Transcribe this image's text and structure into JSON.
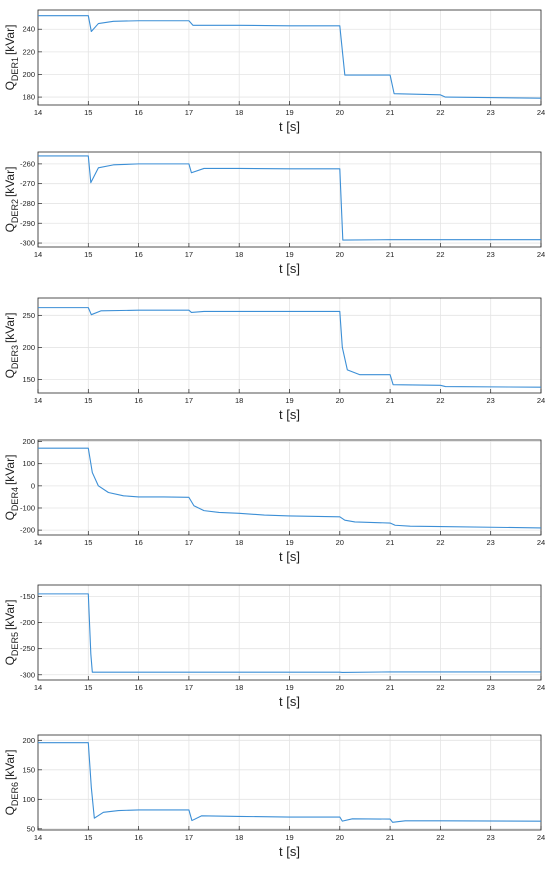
{
  "colors": {
    "line": "#3c8fd6",
    "grid": "#e4e4e4",
    "axis": "#262626"
  },
  "chart_data": [
    {
      "type": "line",
      "ylabel": "Q",
      "ylabel_sub": "DER1",
      "ylabel_unit": "[kVar]",
      "xlabel": "t [s]",
      "xlim": [
        14,
        24
      ],
      "ylim": [
        173,
        257
      ],
      "xticks": [
        14,
        15,
        16,
        17,
        18,
        19,
        20,
        21,
        22,
        23,
        24
      ],
      "yticks": [
        180,
        200,
        220,
        240
      ],
      "grid": true,
      "series": [
        {
          "x": [
            14,
            15,
            15.06,
            15.2,
            15.5,
            16,
            17,
            17.08,
            18,
            19,
            20,
            20.1,
            21,
            21.08,
            22,
            22.1,
            24
          ],
          "y": [
            252,
            252,
            238,
            245,
            247,
            247.5,
            247.5,
            243.5,
            243.5,
            243,
            243,
            199.5,
            199.5,
            183,
            182,
            180,
            179
          ]
        }
      ]
    },
    {
      "type": "line",
      "ylabel": "Q",
      "ylabel_sub": "DER2",
      "ylabel_unit": "[kVar]",
      "xlabel": "t [s]",
      "xlim": [
        14,
        24
      ],
      "ylim": [
        -302,
        -254
      ],
      "xticks": [
        14,
        15,
        16,
        17,
        18,
        19,
        20,
        21,
        22,
        23,
        24
      ],
      "yticks": [
        -300,
        -290,
        -280,
        -270,
        -260
      ],
      "grid": true,
      "series": [
        {
          "x": [
            14,
            15,
            15.05,
            15.2,
            15.5,
            16,
            17,
            17.05,
            17.3,
            18,
            19,
            20,
            20.06,
            21,
            24
          ],
          "y": [
            -256,
            -256,
            -269.5,
            -262,
            -260.5,
            -260,
            -260,
            -264.5,
            -262.3,
            -262.3,
            -262.5,
            -262.5,
            -298.5,
            -298.3,
            -298.3
          ]
        }
      ]
    },
    {
      "type": "line",
      "ylabel": "Q",
      "ylabel_sub": "DER3",
      "ylabel_unit": "[kVar]",
      "xlabel": "t [s]",
      "xlim": [
        14,
        24
      ],
      "ylim": [
        129,
        277
      ],
      "xticks": [
        14,
        15,
        16,
        17,
        18,
        19,
        20,
        21,
        22,
        23,
        24
      ],
      "yticks": [
        150,
        200,
        250
      ],
      "grid": true,
      "series": [
        {
          "x": [
            14,
            15,
            15.06,
            15.25,
            16,
            17,
            17.05,
            17.3,
            18,
            19,
            20,
            20.05,
            20.15,
            20.4,
            21,
            21.06,
            22,
            22.1,
            24
          ],
          "y": [
            262,
            262,
            251,
            257,
            258,
            258,
            254.5,
            256,
            256,
            256,
            256,
            200,
            165,
            157.5,
            157.5,
            142,
            141,
            139,
            138
          ]
        }
      ]
    },
    {
      "type": "line",
      "ylabel": "Q",
      "ylabel_sub": "DER4",
      "ylabel_unit": "[kVar]",
      "xlabel": "t [s]",
      "xlim": [
        14,
        24
      ],
      "ylim": [
        -222,
        207
      ],
      "xticks": [
        14,
        15,
        16,
        17,
        18,
        19,
        20,
        21,
        22,
        23,
        24
      ],
      "yticks": [
        -200,
        -100,
        0,
        100,
        200
      ],
      "grid": true,
      "series": [
        {
          "x": [
            14,
            15,
            15.08,
            15.2,
            15.4,
            15.7,
            16,
            16.5,
            17,
            17.1,
            17.3,
            17.6,
            18,
            18.5,
            19,
            20,
            20.1,
            20.3,
            21,
            21.1,
            21.4,
            22,
            24
          ],
          "y": [
            170,
            170,
            60,
            0,
            -30,
            -45,
            -50,
            -50,
            -52,
            -90,
            -112,
            -120,
            -124,
            -132,
            -136,
            -140,
            -155,
            -163,
            -168,
            -178,
            -182,
            -184,
            -190
          ]
        }
      ]
    },
    {
      "type": "line",
      "ylabel": "Q",
      "ylabel_sub": "DER5",
      "ylabel_unit": "[kVar]",
      "xlabel": "t [s]",
      "xlim": [
        14,
        24
      ],
      "ylim": [
        -310,
        -128
      ],
      "xticks": [
        14,
        15,
        16,
        17,
        18,
        19,
        20,
        21,
        22,
        23,
        24
      ],
      "yticks": [
        -300,
        -250,
        -200,
        -150
      ],
      "grid": true,
      "series": [
        {
          "x": [
            14,
            15,
            15.05,
            15.08,
            16,
            17,
            18,
            19,
            20,
            20.05,
            21,
            24
          ],
          "y": [
            -145,
            -145,
            -260,
            -295,
            -295,
            -295,
            -295,
            -295,
            -295,
            -295.5,
            -294.5,
            -294.5
          ]
        }
      ]
    },
    {
      "type": "line",
      "ylabel": "Q",
      "ylabel_sub": "DER6",
      "ylabel_unit": "[kVar]",
      "xlabel": "t [s]",
      "xlim": [
        14,
        24
      ],
      "ylim": [
        48,
        209
      ],
      "xticks": [
        14,
        15,
        16,
        17,
        18,
        19,
        20,
        21,
        22,
        23,
        24
      ],
      "yticks": [
        50,
        100,
        150,
        200
      ],
      "grid": true,
      "series": [
        {
          "x": [
            14,
            15,
            15.06,
            15.12,
            15.3,
            15.6,
            16,
            17,
            17.06,
            17.25,
            18,
            19,
            20,
            20.05,
            20.25,
            21,
            21.05,
            21.3,
            22,
            24
          ],
          "y": [
            196,
            196,
            120,
            68,
            78,
            81,
            82,
            82,
            64,
            72,
            71,
            70,
            70,
            63,
            67,
            66.5,
            61,
            63.5,
            63.5,
            63
          ]
        }
      ]
    }
  ]
}
